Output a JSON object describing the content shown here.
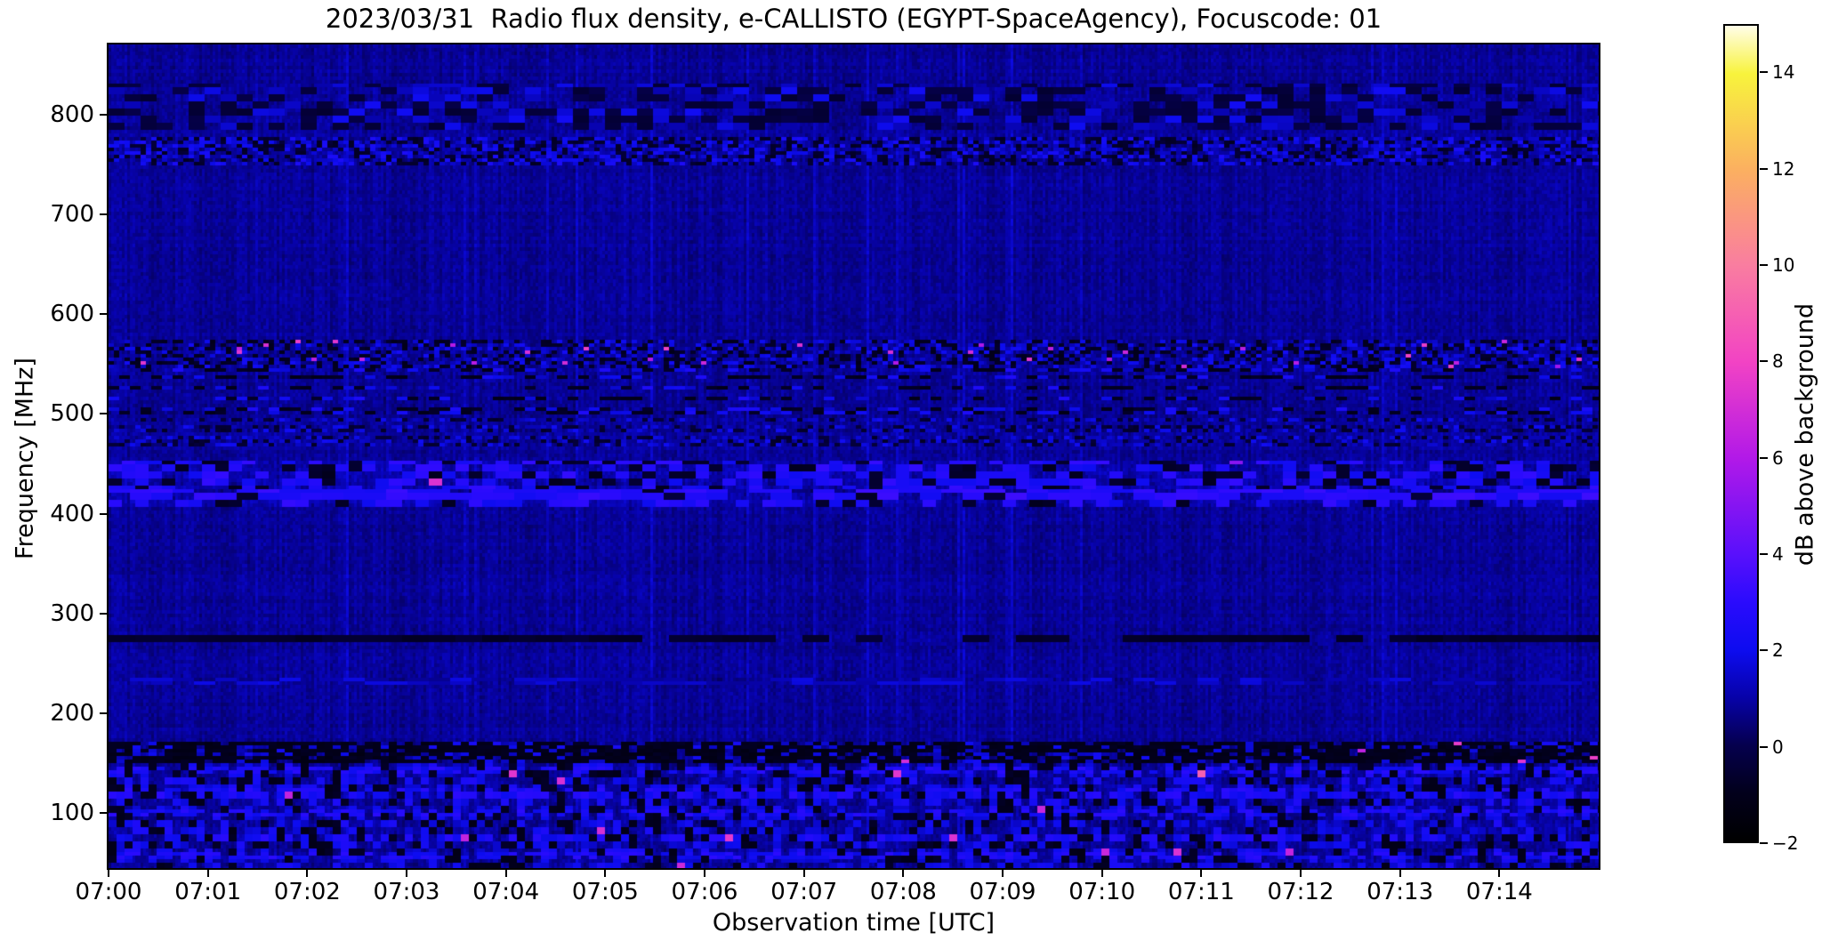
{
  "page": {
    "background_color": "#ffffff",
    "text_color": "#000000"
  },
  "chart_data": {
    "type": "heatmap",
    "subtype": "radio-spectrogram",
    "title": "2023/03/31  Radio flux density, e-CALLISTO (EGYPT-SpaceAgency), Focuscode: 01",
    "xlabel": "Observation time [UTC]",
    "ylabel": "Frequency [MHz]",
    "grid": false,
    "legend": null,
    "x_ticks": [
      "07:00",
      "07:01",
      "07:02",
      "07:03",
      "07:04",
      "07:05",
      "07:06",
      "07:07",
      "07:08",
      "07:09",
      "07:10",
      "07:11",
      "07:12",
      "07:13",
      "07:14"
    ],
    "x_tick_minutes": [
      0,
      1,
      2,
      3,
      4,
      5,
      6,
      7,
      8,
      9,
      10,
      11,
      12,
      13,
      14
    ],
    "x_range_minutes": [
      0,
      15
    ],
    "y_ticks": [
      100,
      200,
      300,
      400,
      500,
      600,
      700,
      800
    ],
    "y_range_mhz": [
      45,
      870
    ],
    "background_level_db": 0.8,
    "colorbar": {
      "label": "dB above background",
      "ticks": [
        "−2",
        "0",
        "2",
        "4",
        "6",
        "8",
        "10",
        "12",
        "14"
      ],
      "tick_values": [
        -2,
        0,
        2,
        4,
        6,
        8,
        10,
        12,
        14
      ],
      "range": [
        -2,
        15
      ],
      "stops": [
        [
          0.0,
          "#000000"
        ],
        [
          0.06,
          "#02001c"
        ],
        [
          0.118,
          "#05004e"
        ],
        [
          0.176,
          "#0702a8"
        ],
        [
          0.235,
          "#0d0cf0"
        ],
        [
          0.294,
          "#2b0bfd"
        ],
        [
          0.353,
          "#5a10fc"
        ],
        [
          0.47,
          "#b219e8"
        ],
        [
          0.588,
          "#f243c4"
        ],
        [
          0.706,
          "#f97da0"
        ],
        [
          0.824,
          "#fbb060"
        ],
        [
          0.941,
          "#f8f33c"
        ],
        [
          1.0,
          "#fffde8"
        ]
      ]
    },
    "bands": [
      {
        "label": "RFI band ~810 MHz",
        "freq_mhz": [
          830,
          785
        ],
        "bw": 6,
        "bh": 2,
        "p_dark": 0.3,
        "dark_db": -0.6,
        "p_bright": 0.2,
        "bright_db": 1.6
      },
      {
        "label": "RFI band ~760 MHz",
        "freq_mhz": [
          777,
          748
        ],
        "bw": 2,
        "bh": 1,
        "p_dark": 0.3,
        "dark_db": -0.9,
        "p_bright": 0.3,
        "bright_db": 1.9
      },
      {
        "label": "speckle band ~560 MHz",
        "freq_mhz": [
          575,
          545
        ],
        "bw": 2,
        "bh": 1,
        "p_dark": 0.3,
        "dark_db": -1.1,
        "p_bright": 0.25,
        "bright_db": 1.7,
        "p_hot": 0.012,
        "hot_db": 5.5
      },
      {
        "label": "dash rows ~520 MHz",
        "freq_mhz": [
          545,
          500
        ],
        "bw": 4,
        "bh": 1,
        "p_dark": 0.28,
        "dark_db": -1.2,
        "p_bright": 0.22,
        "bright_db": 2.0,
        "p_row": 0.55
      },
      {
        "label": "fine speckle ~485 MHz",
        "freq_mhz": [
          500,
          468
        ],
        "bw": 2,
        "bh": 1,
        "p_dark": 0.25,
        "dark_db": -0.8,
        "p_bright": 0.25,
        "bright_db": 1.6,
        "p_row": 0.7
      },
      {
        "label": "bright line ~420 MHz",
        "freq_mhz": [
          424,
          415
        ],
        "bw": 8,
        "bh": 2,
        "p_dark": 0.05,
        "dark_db": -0.8,
        "p_bright": 0.75,
        "bright_db": 2.8
      },
      {
        "label": "bright dash band ~430 MHz",
        "freq_mhz": [
          453,
          408
        ],
        "bw": 5,
        "bh": 2,
        "p_dark": 0.18,
        "dark_db": -1.0,
        "p_bright": 0.38,
        "bright_db": 2.6,
        "base_add": 0.2,
        "p_hot": 0.004,
        "hot_db": 5.0
      },
      {
        "label": "dark line ~276 MHz",
        "freq_mhz": [
          279,
          273
        ],
        "bw": 10,
        "bh": 2,
        "p_dark": 0.85,
        "dark_db": -0.9
      },
      {
        "label": "faint line ~232 MHz",
        "freq_mhz": [
          235,
          229
        ],
        "bw": 8,
        "bh": 1,
        "p_bright": 0.6,
        "bright_db": 1.3
      },
      {
        "label": "dark band ~160 MHz",
        "freq_mhz": [
          170,
          149
        ],
        "bw": 3,
        "bh": 1,
        "p_dark": 0.75,
        "dark_db": -1.3,
        "p_bright": 0.12,
        "bright_db": 1.8,
        "p_hot": 0.006,
        "hot_db": 6.0
      },
      {
        "label": "broadband noise below 150 MHz",
        "freq_mhz": [
          149,
          45
        ],
        "bw": 3,
        "bh": 2,
        "p_dark": 0.18,
        "dark_db": -1.2,
        "p_bright": 0.3,
        "bright_db": 2.0,
        "p_hot": 0.004,
        "hot_db": 6.5,
        "hot_rows_mhz": [
          143,
          120,
          99,
          75,
          58
        ]
      }
    ]
  }
}
